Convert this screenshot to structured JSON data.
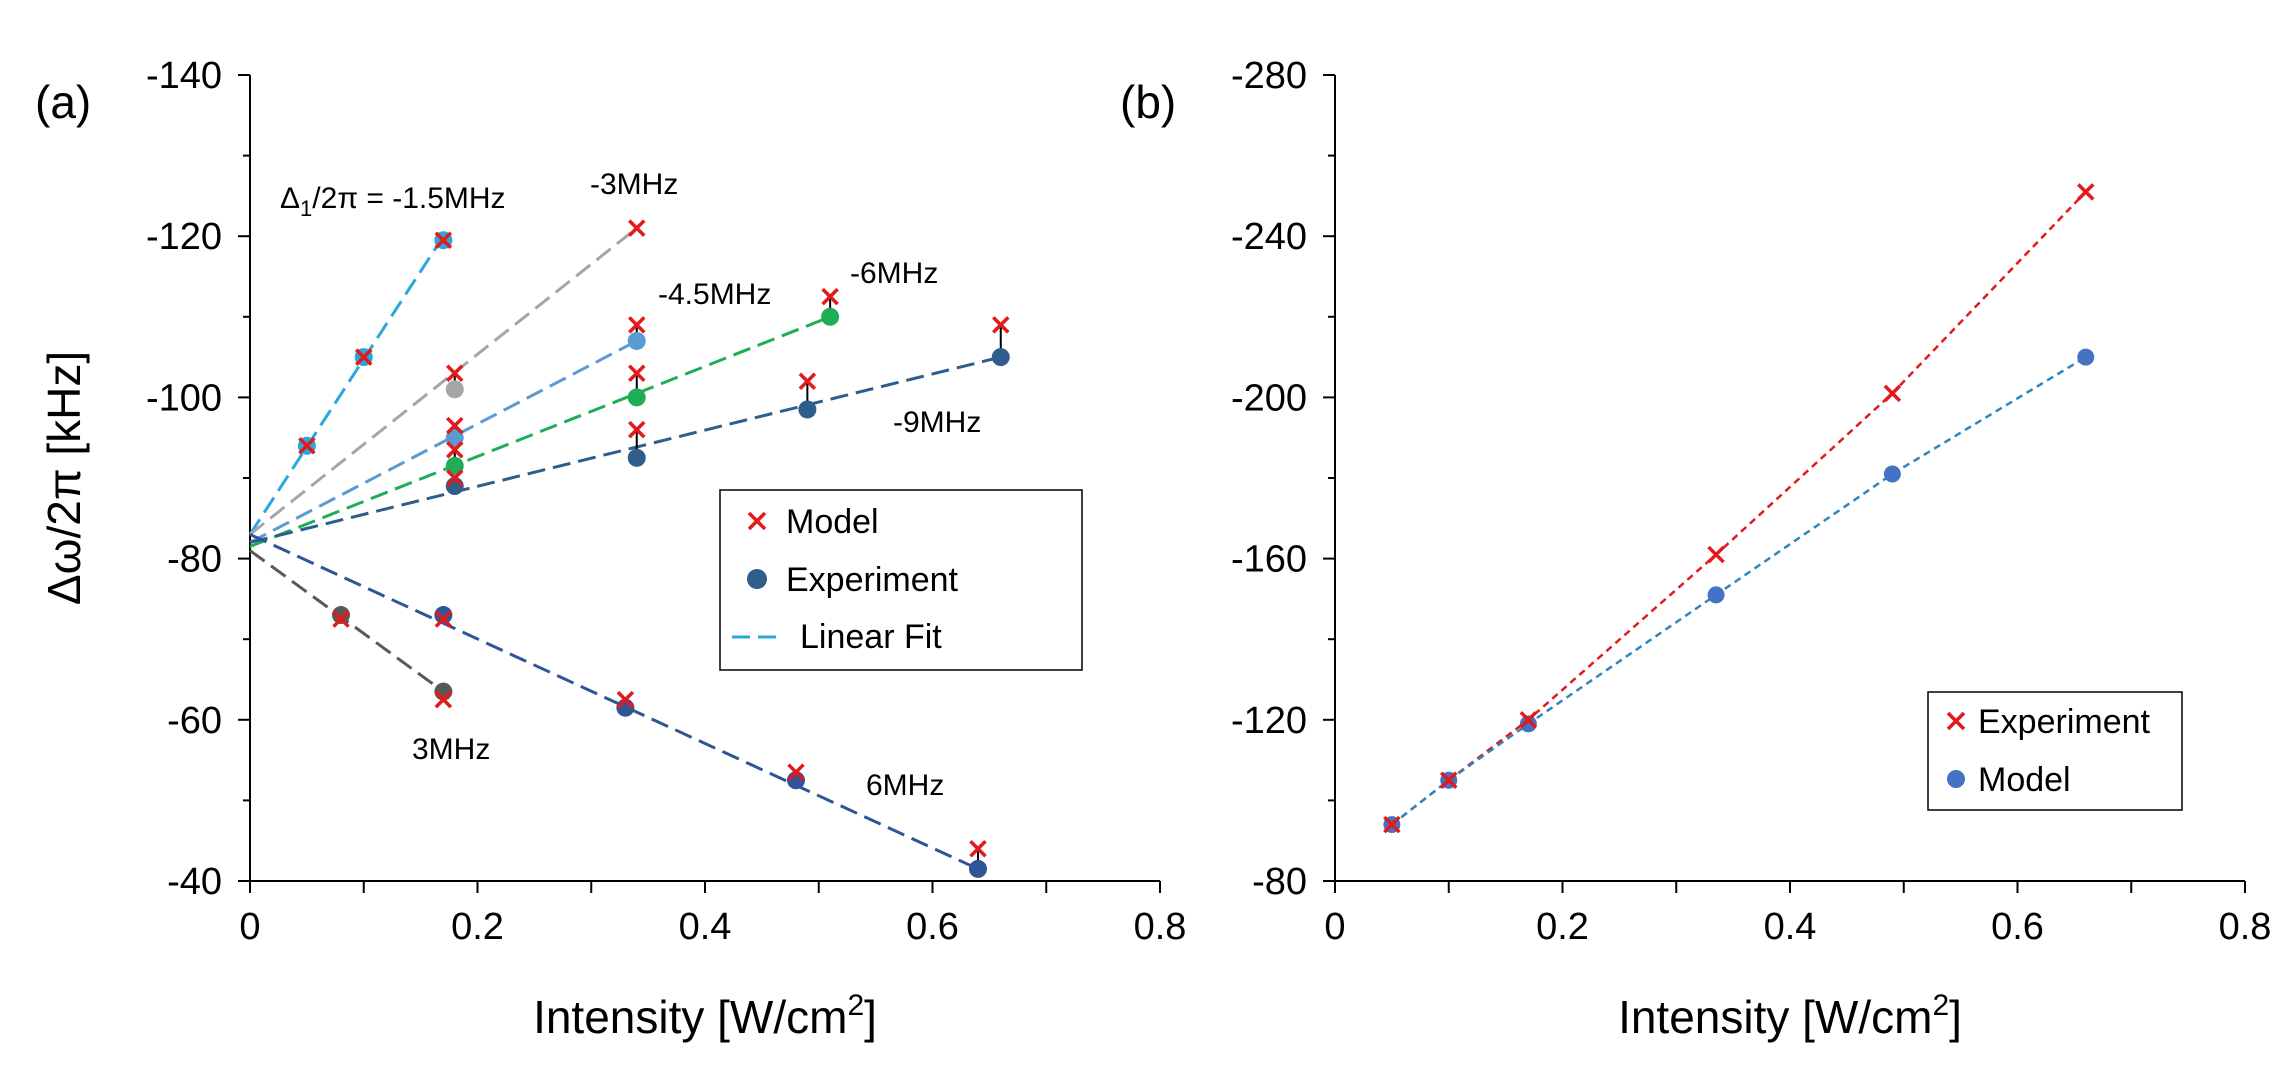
{
  "chart_data": [
    {
      "panel": "(a)",
      "type": "scatter",
      "xlabel_main": "Intensity [W/cm",
      "xlabel_sup": "2",
      "xlabel_end": "]",
      "ylabel": "Δω/2π [kHz]",
      "xlim": [
        0,
        0.8
      ],
      "ylim": [
        -40,
        -140
      ],
      "xticks": [
        0,
        0.2,
        0.4,
        0.6,
        0.8
      ],
      "xtick_labels": [
        "0",
        "0.2",
        "0.4",
        "0.6",
        "0.8"
      ],
      "yticks": [
        -140,
        -120,
        -100,
        -80,
        -60,
        -40
      ],
      "ytick_labels": [
        "-140",
        "-120",
        "-100",
        "-80",
        "-60",
        "-40"
      ],
      "legend": {
        "position": "center-right",
        "entries": [
          {
            "label": "Model",
            "marker": "x",
            "color": "#e31a1c"
          },
          {
            "label": "Experiment",
            "marker": "circle",
            "color": "#2f5d8c"
          },
          {
            "label": "Linear Fit",
            "marker": "dash",
            "color": "#29a8dd"
          }
        ]
      },
      "series": [
        {
          "name": "-1.5MHz",
          "label_prefix": "Δ",
          "label_sub": "1",
          "label_text": "/2π = -1.5MHz",
          "color": "#29a8dd",
          "fit": {
            "x0": 0,
            "y0": -83,
            "x1": 0.17,
            "y1": -120
          },
          "experiment": {
            "x": [
              0.05,
              0.1,
              0.17
            ],
            "y": [
              -94,
              -105,
              -119.5
            ]
          },
          "model": {
            "x": [
              0.05,
              0.1,
              0.17
            ],
            "y": [
              -94,
              -105,
              -119.5
            ]
          }
        },
        {
          "name": "-3MHz",
          "label_text": "-3MHz",
          "color": "#a6a6a6",
          "fit": {
            "x0": 0,
            "y0": -83,
            "x1": 0.34,
            "y1": -121
          },
          "experiment": {
            "x": [
              0.18
            ],
            "y": [
              -101
            ]
          },
          "model": {
            "x": [
              0.18,
              0.34
            ],
            "y": [
              -103,
              -121
            ]
          }
        },
        {
          "name": "-4.5MHz",
          "label_text": "-4.5MHz",
          "color": "#5b9bd5",
          "fit": {
            "x0": 0,
            "y0": -82,
            "x1": 0.34,
            "y1": -107
          },
          "experiment": {
            "x": [
              0.18,
              0.34
            ],
            "y": [
              -95,
              -107
            ]
          },
          "model": {
            "x": [
              0.18,
              0.34
            ],
            "y": [
              -96.5,
              -109
            ]
          }
        },
        {
          "name": "-6MHz",
          "label_text": "-6MHz",
          "color": "#1fae55",
          "fit": {
            "x0": 0,
            "y0": -81.5,
            "x1": 0.51,
            "y1": -110
          },
          "experiment": {
            "x": [
              0.18,
              0.34,
              0.51
            ],
            "y": [
              -91.5,
              -100,
              -110
            ]
          },
          "model": {
            "x": [
              0.18,
              0.34,
              0.51
            ],
            "y": [
              -93.5,
              -103,
              -112.5
            ]
          }
        },
        {
          "name": "-9MHz",
          "label_text": "-9MHz",
          "color": "#2f5d8c",
          "fit": {
            "x0": 0,
            "y0": -82,
            "x1": 0.66,
            "y1": -105
          },
          "experiment": {
            "x": [
              0.18,
              0.34,
              0.49,
              0.66
            ],
            "y": [
              -89,
              -92.5,
              -98.5,
              -105
            ]
          },
          "model": {
            "x": [
              0.18,
              0.34,
              0.49,
              0.66
            ],
            "y": [
              -90,
              -96,
              -102,
              -109
            ]
          }
        },
        {
          "name": "3MHz",
          "label_text": "3MHz",
          "color": "#595959",
          "fit": {
            "x0": 0,
            "y0": -81,
            "x1": 0.17,
            "y1": -63.5
          },
          "experiment": {
            "x": [
              0.08,
              0.17
            ],
            "y": [
              -73,
              -63.5
            ]
          },
          "model": {
            "x": [
              0.08,
              0.17
            ],
            "y": [
              -72.5,
              -62.5
            ]
          }
        },
        {
          "name": "6MHz",
          "label_text": "6MHz",
          "color": "#2f5597",
          "fit": {
            "x0": 0,
            "y0": -83,
            "x1": 0.64,
            "y1": -41.5
          },
          "experiment": {
            "x": [
              0.17,
              0.33,
              0.48,
              0.64
            ],
            "y": [
              -73,
              -61.5,
              -52.5,
              -41.5
            ]
          },
          "model": {
            "x": [
              0.17,
              0.33,
              0.48,
              0.64
            ],
            "y": [
              -72.5,
              -62.5,
              -53.5,
              -44
            ]
          }
        }
      ]
    },
    {
      "panel": "(b)",
      "type": "scatter",
      "xlabel_main": "Intensity [W/cm",
      "xlabel_sup": "2",
      "xlabel_end": "]",
      "ylabel": "",
      "xlim": [
        0,
        0.8
      ],
      "ylim": [
        -80,
        -280
      ],
      "xticks": [
        0,
        0.2,
        0.4,
        0.6,
        0.8
      ],
      "xtick_labels": [
        "0",
        "0.2",
        "0.4",
        "0.6",
        "0.8"
      ],
      "yticks": [
        -280,
        -240,
        -200,
        -160,
        -120,
        -80
      ],
      "ytick_labels": [
        "-280",
        "-240",
        "-200",
        "-160",
        "-120",
        "-80"
      ],
      "legend": {
        "position": "bottom-right",
        "entries": [
          {
            "label": "Experiment",
            "marker": "x",
            "color": "#e31a1c"
          },
          {
            "label": "Model",
            "marker": "circle",
            "color": "#4472c4"
          }
        ]
      },
      "series": [
        {
          "name": "Experiment",
          "marker": "x",
          "color": "#e31a1c",
          "line_color": "#e31a1c",
          "x": [
            0.05,
            0.1,
            0.17,
            0.335,
            0.49,
            0.66
          ],
          "y": [
            -94,
            -105,
            -120,
            -161,
            -201,
            -251
          ]
        },
        {
          "name": "Model",
          "marker": "circle",
          "color": "#4472c4",
          "line_color": "#2e86c1",
          "x": [
            0.05,
            0.1,
            0.17,
            0.335,
            0.49,
            0.66
          ],
          "y": [
            -94,
            -105,
            -119,
            -151,
            -181,
            -210
          ]
        }
      ]
    }
  ]
}
